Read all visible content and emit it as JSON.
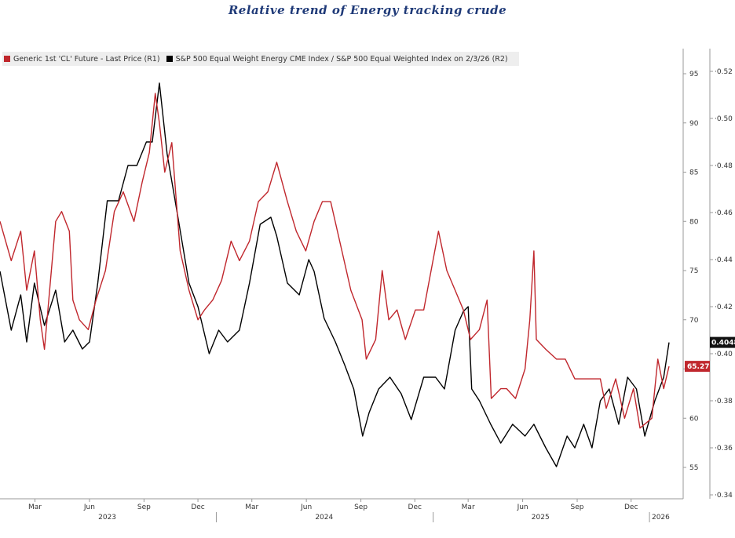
{
  "title": "Relative trend of Energy tracking crude",
  "legend": [
    {
      "label": "Generic 1st 'CL' Future - Last Price (R1)",
      "color": "#c0272d"
    },
    {
      "label": "S&P 500 Equal Weight Energy CME Index / S&P 500 Equal Weighted Index on 2/3/26 (R2)",
      "color": "#000000"
    }
  ],
  "chart_data": {
    "type": "line",
    "title": "Relative trend of Energy tracking crude",
    "x_month_labels": [
      "Mar",
      "Jun",
      "Sep",
      "Dec",
      "Mar",
      "Jun",
      "Sep",
      "Dec",
      "Mar",
      "Jun",
      "Sep",
      "Dec"
    ],
    "x_year_labels": [
      "2023",
      "2024",
      "2025",
      "2026"
    ],
    "x_range": [
      "2023-01-01",
      "2026-02-03"
    ],
    "r1_axis": {
      "ylim": [
        53,
        97
      ],
      "ticks": [
        55,
        60,
        65,
        70,
        75,
        80,
        85,
        90,
        95
      ]
    },
    "r2_axis": {
      "ylim": [
        0.338,
        0.528
      ],
      "ticks": [
        "0.34",
        "0.36",
        "0.38",
        "0.40",
        "0.42",
        "0.44",
        "0.46",
        "0.48",
        "0.50",
        "0.52"
      ]
    },
    "last_values": {
      "r1": "65.27",
      "r2": "0.4048"
    },
    "series": [
      {
        "name": "Generic 1st 'CL' Future - Last Price (R1)",
        "color": "#c0272d",
        "axis": "r1",
        "x": [
          "2023-01-01",
          "2023-01-20",
          "2023-02-05",
          "2023-02-15",
          "2023-02-28",
          "2023-03-10",
          "2023-03-17",
          "2023-04-05",
          "2023-04-15",
          "2023-04-28",
          "2023-05-04",
          "2023-05-15",
          "2023-05-30",
          "2023-06-12",
          "2023-06-28",
          "2023-07-13",
          "2023-07-28",
          "2023-08-15",
          "2023-08-29",
          "2023-09-10",
          "2023-09-20",
          "2023-09-27",
          "2023-10-06",
          "2023-10-18",
          "2023-11-01",
          "2023-11-16",
          "2023-12-01",
          "2023-12-12",
          "2023-12-26",
          "2024-01-10",
          "2024-01-26",
          "2024-02-09",
          "2024-02-26",
          "2024-03-12",
          "2024-03-28",
          "2024-04-12",
          "2024-04-30",
          "2024-05-15",
          "2024-05-31",
          "2024-06-14",
          "2024-06-28",
          "2024-07-12",
          "2024-07-31",
          "2024-08-15",
          "2024-09-03",
          "2024-09-10",
          "2024-09-26",
          "2024-10-07",
          "2024-10-18",
          "2024-11-01",
          "2024-11-15",
          "2024-12-02",
          "2024-12-16",
          "2025-01-10",
          "2025-01-24",
          "2025-02-07",
          "2025-02-21",
          "2025-03-05",
          "2025-03-20",
          "2025-04-02",
          "2025-04-09",
          "2025-04-25",
          "2025-05-05",
          "2025-05-20",
          "2025-06-05",
          "2025-06-13",
          "2025-06-20",
          "2025-06-24",
          "2025-07-10",
          "2025-07-28",
          "2025-08-12",
          "2025-08-28",
          "2025-09-12",
          "2025-09-26",
          "2025-10-10",
          "2025-10-20",
          "2025-11-05",
          "2025-11-20",
          "2025-12-05",
          "2025-12-16",
          "2026-01-05",
          "2026-01-15",
          "2026-01-25",
          "2026-02-03"
        ],
        "values": [
          80,
          76,
          79,
          73,
          77,
          70,
          67,
          80,
          81,
          79,
          72,
          70,
          69,
          72,
          75,
          81,
          83,
          80,
          84,
          87,
          93,
          90,
          85,
          88,
          77,
          73,
          70,
          71,
          72,
          74,
          78,
          76,
          78,
          82,
          83,
          86,
          82,
          79,
          77,
          80,
          82,
          82,
          77,
          73,
          70,
          66,
          68,
          75,
          70,
          71,
          68,
          71,
          71,
          79,
          75,
          73,
          71,
          68,
          69,
          72,
          62,
          63,
          63,
          62,
          65,
          70,
          77,
          68,
          67,
          66,
          66,
          64,
          64,
          64,
          64,
          61,
          64,
          60,
          63,
          59,
          60,
          66,
          63,
          65.27
        ]
      },
      {
        "name": "S&P 500 Equal Weight Energy CME Index / S&P 500 Equal Weighted Index on 2/3/26 (R2)",
        "color": "#000000",
        "axis": "r2",
        "x": [
          "2023-01-01",
          "2023-01-20",
          "2023-02-05",
          "2023-02-15",
          "2023-02-28",
          "2023-03-17",
          "2023-04-05",
          "2023-04-20",
          "2023-05-04",
          "2023-05-20",
          "2023-06-01",
          "2023-06-15",
          "2023-07-01",
          "2023-07-20",
          "2023-08-05",
          "2023-08-20",
          "2023-09-05",
          "2023-09-15",
          "2023-09-27",
          "2023-10-10",
          "2023-10-27",
          "2023-11-16",
          "2023-12-01",
          "2023-12-20",
          "2024-01-05",
          "2024-01-20",
          "2024-02-09",
          "2024-02-26",
          "2024-03-15",
          "2024-04-02",
          "2024-04-12",
          "2024-04-30",
          "2024-05-20",
          "2024-06-05",
          "2024-06-14",
          "2024-07-01",
          "2024-07-20",
          "2024-08-05",
          "2024-08-20",
          "2024-09-04",
          "2024-09-15",
          "2024-10-01",
          "2024-10-20",
          "2024-11-08",
          "2024-11-25",
          "2024-12-16",
          "2025-01-05",
          "2025-01-20",
          "2025-02-07",
          "2025-02-21",
          "2025-03-01",
          "2025-03-07",
          "2025-03-20",
          "2025-04-08",
          "2025-04-25",
          "2025-05-15",
          "2025-06-05",
          "2025-06-20",
          "2025-07-10",
          "2025-07-28",
          "2025-08-15",
          "2025-08-28",
          "2025-09-12",
          "2025-09-26",
          "2025-10-10",
          "2025-10-25",
          "2025-11-10",
          "2025-11-25",
          "2025-12-10",
          "2025-12-24",
          "2026-01-10",
          "2026-01-25",
          "2026-02-03"
        ],
        "values": [
          0.435,
          0.41,
          0.425,
          0.405,
          0.43,
          0.412,
          0.427,
          0.405,
          0.41,
          0.402,
          0.405,
          0.43,
          0.465,
          0.465,
          0.48,
          0.48,
          0.49,
          0.49,
          0.515,
          0.485,
          0.46,
          0.43,
          0.42,
          0.4,
          0.41,
          0.405,
          0.41,
          0.43,
          0.455,
          0.458,
          0.45,
          0.43,
          0.425,
          0.44,
          0.435,
          0.415,
          0.405,
          0.395,
          0.385,
          0.365,
          0.375,
          0.385,
          0.39,
          0.383,
          0.372,
          0.39,
          0.39,
          0.385,
          0.41,
          0.418,
          0.42,
          0.385,
          0.38,
          0.37,
          0.362,
          0.37,
          0.365,
          0.37,
          0.36,
          0.352,
          0.365,
          0.36,
          0.37,
          0.36,
          0.38,
          0.385,
          0.37,
          0.39,
          0.385,
          0.365,
          0.38,
          0.39,
          0.4048
        ]
      }
    ]
  }
}
